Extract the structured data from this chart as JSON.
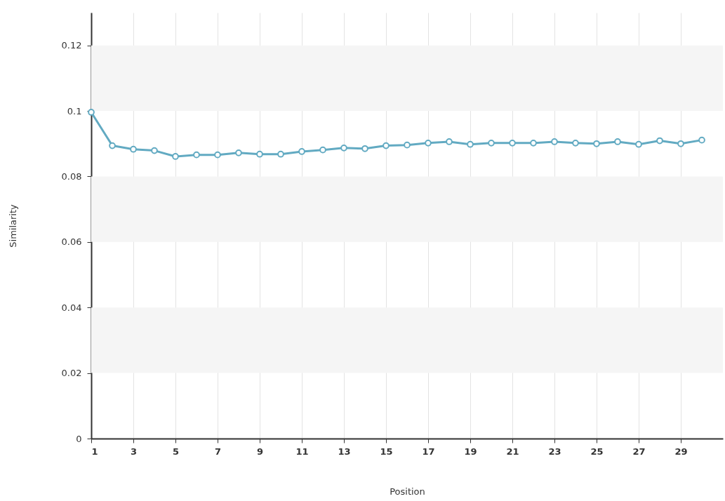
{
  "chart_data": {
    "type": "line",
    "xlabel": "Position",
    "ylabel": "Similarity",
    "x": [
      1,
      2,
      3,
      4,
      5,
      6,
      7,
      8,
      9,
      10,
      11,
      12,
      13,
      14,
      15,
      16,
      17,
      18,
      19,
      20,
      21,
      22,
      23,
      24,
      25,
      26,
      27,
      28,
      29,
      30
    ],
    "series": [
      {
        "color": "#62aac2",
        "values": [
          0.0996,
          0.0894,
          0.0883,
          0.0879,
          0.0861,
          0.0866,
          0.0866,
          0.0872,
          0.0868,
          0.0868,
          0.0876,
          0.0881,
          0.0887,
          0.0885,
          0.0894,
          0.0896,
          0.0902,
          0.0906,
          0.0898,
          0.0902,
          0.0902,
          0.0902,
          0.0906,
          0.0902,
          0.09,
          0.0906,
          0.0898,
          0.0909,
          0.09,
          0.0911
        ]
      }
    ],
    "xlim": [
      1,
      31
    ],
    "xticks": [
      1,
      3,
      5,
      7,
      9,
      11,
      13,
      15,
      17,
      19,
      21,
      23,
      25,
      27,
      29
    ],
    "ylim": [
      0,
      0.13
    ],
    "yticks": [
      0,
      0.02,
      0.04,
      0.06,
      0.08,
      0.1,
      0.12
    ],
    "bands": [
      {
        "axis": "y",
        "from": 0.02,
        "to": 0.04,
        "color": "#f5f5f5"
      },
      {
        "axis": "y",
        "from": 0.06,
        "to": 0.08,
        "color": "#f5f5f5"
      },
      {
        "axis": "y",
        "from": 0.1,
        "to": 0.12,
        "color": "#f5f5f5"
      }
    ],
    "grid": "x",
    "marker": "circle",
    "line_style": "solid"
  }
}
